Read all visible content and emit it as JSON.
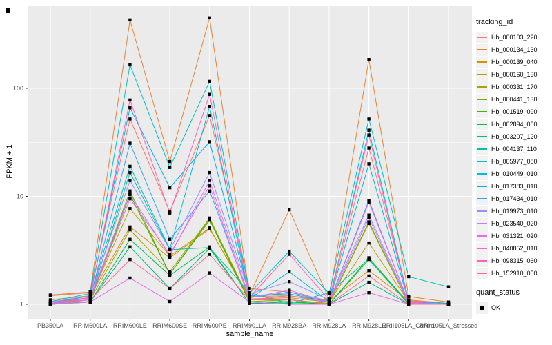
{
  "chart_data": {
    "type": "line",
    "title": "",
    "xlabel": "sample_name",
    "ylabel": "FPKM + 1",
    "y_scale": "log10",
    "y_ticks": [
      1,
      10,
      100
    ],
    "ylim": [
      1,
      560
    ],
    "grid": "on",
    "panel_background": "#EBEBEB",
    "grid_color": "#FFFFFF",
    "tick_label_color": "#4D4D4D",
    "point_color": "#000000",
    "point_shape": "square",
    "categories": [
      "PB350LA",
      "RRIM600LA",
      "RRIM600LE",
      "RRIM600SE",
      "RRIM600PE",
      "RRIM901LA",
      "RRIM928BA",
      "RRIM928LA",
      "RRIM928LE",
      "RRII105LA_Control",
      "RRII105LA_Stressed"
    ],
    "legend": {
      "title": "tracking_id",
      "position": "right"
    },
    "legend2": {
      "title": "quant_status",
      "items": [
        {
          "label": "OK",
          "marker": "black-square"
        }
      ]
    },
    "series": [
      {
        "name": "Hb_000103_220",
        "color": "#F8766D",
        "values": [
          1.2,
          1.28,
          52,
          7.2,
          56,
          1.4,
          1.3,
          1.08,
          28,
          1.1,
          1.02
        ]
      },
      {
        "name": "Hb_000134_130",
        "color": "#EA8331",
        "values": [
          1.22,
          1.3,
          430,
          21,
          450,
          1.22,
          7.5,
          1.12,
          185,
          1.18,
          1.05
        ]
      },
      {
        "name": "Hb_000139_040",
        "color": "#D89000",
        "values": [
          1.1,
          1.2,
          5.2,
          2.7,
          5.0,
          1.18,
          1.2,
          1.08,
          2.05,
          1.08,
          1.02
        ]
      },
      {
        "name": "Hb_000160_190",
        "color": "#C09B00",
        "values": [
          1.05,
          1.15,
          7.7,
          2.8,
          5.1,
          1.12,
          1.15,
          1.05,
          3.7,
          1.05,
          1.0
        ]
      },
      {
        "name": "Hb_000331_170",
        "color": "#A3A500",
        "values": [
          1.02,
          1.1,
          4.9,
          2.0,
          6.3,
          1.1,
          1.1,
          1.02,
          5.6,
          1.02,
          1.0
        ]
      },
      {
        "name": "Hb_000441_130",
        "color": "#7CAE00",
        "values": [
          1.02,
          1.1,
          11.2,
          1.9,
          6.2,
          1.06,
          1.1,
          1.02,
          5.8,
          1.02,
          1.0
        ]
      },
      {
        "name": "Hb_001519_090",
        "color": "#39B600",
        "values": [
          1.0,
          1.06,
          10.4,
          1.9,
          6.0,
          1.05,
          1.06,
          1.0,
          2.7,
          1.02,
          1.0
        ]
      },
      {
        "name": "Hb_002894_060",
        "color": "#00BB4E",
        "values": [
          1.0,
          1.05,
          4.0,
          1.85,
          3.4,
          1.02,
          1.05,
          1.0,
          2.6,
          1.0,
          1.0
        ]
      },
      {
        "name": "Hb_003207_120",
        "color": "#00BF7D",
        "values": [
          1.0,
          1.05,
          3.4,
          1.4,
          3.3,
          1.02,
          1.02,
          1.0,
          1.6,
          1.0,
          1.0
        ]
      },
      {
        "name": "Hb_004137_110",
        "color": "#00C1A3",
        "values": [
          1.0,
          1.1,
          16.6,
          3.2,
          3.35,
          1.28,
          1.02,
          1.28,
          2.62,
          1.02,
          1.0
        ]
      },
      {
        "name": "Hb_005977_080",
        "color": "#00BFC4",
        "values": [
          1.06,
          1.26,
          165,
          18.5,
          116,
          1.26,
          3.1,
          1.26,
          52,
          1.8,
          1.45
        ]
      },
      {
        "name": "Hb_010449_010",
        "color": "#00BAE0",
        "values": [
          1.02,
          1.2,
          19.0,
          3.25,
          68,
          1.12,
          2.0,
          1.06,
          41,
          1.06,
          1.02
        ]
      },
      {
        "name": "Hb_017383_010",
        "color": "#00B0F6",
        "values": [
          1.02,
          1.2,
          66,
          12.0,
          32,
          1.2,
          1.25,
          1.05,
          20,
          1.05,
          1.0
        ]
      },
      {
        "name": "Hb_017434_010",
        "color": "#35A2FF",
        "values": [
          1.0,
          1.15,
          31,
          4.0,
          11.2,
          1.15,
          1.3,
          1.04,
          9.2,
          1.02,
          1.0
        ]
      },
      {
        "name": "Hb_019973_010",
        "color": "#9590FF",
        "values": [
          1.05,
          1.2,
          14.0,
          3.2,
          16.6,
          1.25,
          1.62,
          1.1,
          6.7,
          1.05,
          1.0
        ]
      },
      {
        "name": "Hb_023540_020",
        "color": "#C77CFF",
        "values": [
          1.02,
          1.15,
          10.5,
          2.8,
          14.0,
          1.15,
          1.35,
          1.05,
          6.3,
          1.02,
          1.0
        ]
      },
      {
        "name": "Hb_031321_020",
        "color": "#E76BF3",
        "values": [
          1.0,
          1.05,
          1.75,
          1.06,
          1.95,
          1.05,
          1.0,
          1.0,
          1.28,
          1.0,
          1.0
        ]
      },
      {
        "name": "Hb_040852_010",
        "color": "#FA62DB",
        "values": [
          1.0,
          1.1,
          9.5,
          2.9,
          12.5,
          1.1,
          1.2,
          1.04,
          8.8,
          1.04,
          1.0
        ]
      },
      {
        "name": "Hb_098315_060",
        "color": "#FF62BC",
        "values": [
          1.02,
          1.16,
          78,
          7.0,
          88,
          1.16,
          2.9,
          1.1,
          37,
          1.02,
          1.0
        ]
      },
      {
        "name": "Hb_152910_050",
        "color": "#FF6A98",
        "values": [
          1.05,
          1.1,
          2.6,
          1.4,
          2.9,
          1.1,
          1.1,
          1.0,
          1.83,
          1.0,
          1.0
        ]
      }
    ]
  }
}
